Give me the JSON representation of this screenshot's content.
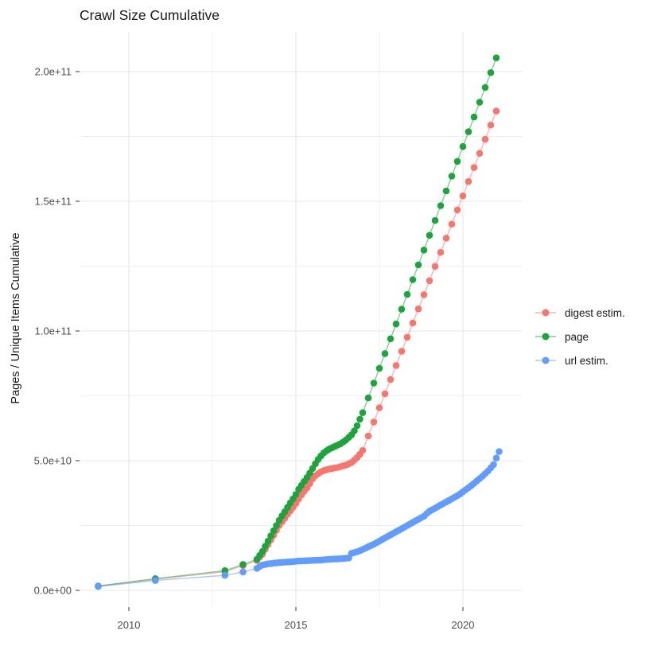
{
  "chart_data": {
    "type": "scatter",
    "title": "Crawl Size Cumulative",
    "xlabel": "",
    "ylabel": "Pages / Unique Items Cumulative",
    "grid": true,
    "legend_position": "right",
    "background": "#ffffff",
    "grid_color_major": "#e7e7e7",
    "grid_color_minor": "#f1f1f1",
    "tick_color": "#333333",
    "tick_label_color": "#4d4d4d",
    "value_unit": "1e9 (values below are in billions)",
    "xlim": [
      2008.5,
      2021.75
    ],
    "ylim_e9": [
      -9,
      216
    ],
    "x_ticks": [
      {
        "v": 2010,
        "label": "2010"
      },
      {
        "v": 2015,
        "label": "2015"
      },
      {
        "v": 2020,
        "label": "2020"
      }
    ],
    "x_minor": [
      2012.5,
      2017.5
    ],
    "y_ticks": [
      {
        "v": 0,
        "label": "0.0e+00"
      },
      {
        "v": 50,
        "label": "5.0e+10"
      },
      {
        "v": 100,
        "label": "1.0e+11"
      },
      {
        "v": 150,
        "label": "1.5e+11"
      },
      {
        "v": 200,
        "label": "2.0e+11"
      }
    ],
    "y_minor": [
      25,
      75,
      125,
      175
    ],
    "series": [
      {
        "name": "digest estim.",
        "color": "#F8766D",
        "points": [
          [
            2009.083,
            1.6
          ],
          [
            2010.792,
            4.3
          ],
          [
            2012.875,
            7.2
          ],
          [
            2013.417,
            9.5
          ],
          [
            2013.833,
            11.5
          ],
          [
            2013.917,
            12.8
          ],
          [
            2014.0,
            14.0
          ],
          [
            2014.083,
            15.8
          ],
          [
            2014.167,
            17.7
          ],
          [
            2014.25,
            19.5
          ],
          [
            2014.333,
            21.3
          ],
          [
            2014.417,
            23.2
          ],
          [
            2014.5,
            25.0
          ],
          [
            2014.583,
            26.4
          ],
          [
            2014.667,
            27.8
          ],
          [
            2014.75,
            29.3
          ],
          [
            2014.833,
            30.7
          ],
          [
            2014.917,
            32.1
          ],
          [
            2015.0,
            33.5
          ],
          [
            2015.083,
            35.2
          ],
          [
            2015.167,
            36.8
          ],
          [
            2015.25,
            38.2
          ],
          [
            2015.333,
            39.5
          ],
          [
            2015.417,
            41.2
          ],
          [
            2015.5,
            43.0
          ],
          [
            2015.583,
            44.2
          ],
          [
            2015.667,
            45.0
          ],
          [
            2015.75,
            45.7
          ],
          [
            2015.833,
            46.2
          ],
          [
            2015.917,
            46.5
          ],
          [
            2016.0,
            46.8
          ],
          [
            2016.083,
            47.0
          ],
          [
            2016.167,
            47.2
          ],
          [
            2016.25,
            47.4
          ],
          [
            2016.333,
            47.7
          ],
          [
            2016.417,
            48.0
          ],
          [
            2016.5,
            48.3
          ],
          [
            2016.583,
            48.8
          ],
          [
            2016.667,
            49.3
          ],
          [
            2016.75,
            50.2
          ],
          [
            2016.833,
            51.2
          ],
          [
            2016.917,
            52.5
          ],
          [
            2017.0,
            54.0
          ],
          [
            2017.167,
            59.5
          ],
          [
            2017.333,
            64.9
          ],
          [
            2017.5,
            70.4
          ],
          [
            2017.667,
            75.8
          ],
          [
            2017.833,
            81.3
          ],
          [
            2018.0,
            86.7
          ],
          [
            2018.167,
            92.2
          ],
          [
            2018.333,
            97.6
          ],
          [
            2018.5,
            103.1
          ],
          [
            2018.667,
            108.5
          ],
          [
            2018.833,
            114.0
          ],
          [
            2019.0,
            119.4
          ],
          [
            2019.167,
            124.9
          ],
          [
            2019.333,
            130.3
          ],
          [
            2019.5,
            135.8
          ],
          [
            2019.667,
            141.2
          ],
          [
            2019.833,
            146.7
          ],
          [
            2020.0,
            152.1
          ],
          [
            2020.167,
            157.6
          ],
          [
            2020.333,
            163.0
          ],
          [
            2020.5,
            168.5
          ],
          [
            2020.667,
            173.9
          ],
          [
            2020.833,
            179.4
          ],
          [
            2021.0,
            184.8
          ]
        ]
      },
      {
        "name": "page",
        "color": "#1CA53C",
        "points": [
          [
            2009.083,
            1.7
          ],
          [
            2010.792,
            4.5
          ],
          [
            2012.875,
            7.6
          ],
          [
            2013.417,
            10.0
          ],
          [
            2013.833,
            12.0
          ],
          [
            2013.917,
            13.5
          ],
          [
            2014.0,
            15.0
          ],
          [
            2014.083,
            17.0
          ],
          [
            2014.167,
            19.0
          ],
          [
            2014.25,
            21.0
          ],
          [
            2014.333,
            23.0
          ],
          [
            2014.417,
            25.0
          ],
          [
            2014.5,
            27.0
          ],
          [
            2014.583,
            28.7
          ],
          [
            2014.667,
            30.3
          ],
          [
            2014.75,
            32.0
          ],
          [
            2014.833,
            33.7
          ],
          [
            2014.917,
            35.3
          ],
          [
            2015.0,
            37.0
          ],
          [
            2015.083,
            39.0
          ],
          [
            2015.167,
            40.5
          ],
          [
            2015.25,
            42.0
          ],
          [
            2015.333,
            43.5
          ],
          [
            2015.417,
            45.2
          ],
          [
            2015.5,
            47.0
          ],
          [
            2015.583,
            48.8
          ],
          [
            2015.667,
            50.5
          ],
          [
            2015.75,
            51.8
          ],
          [
            2015.833,
            53.0
          ],
          [
            2015.917,
            53.8
          ],
          [
            2016.0,
            54.5
          ],
          [
            2016.083,
            55.0
          ],
          [
            2016.167,
            55.5
          ],
          [
            2016.25,
            56.0
          ],
          [
            2016.333,
            56.5
          ],
          [
            2016.417,
            57.2
          ],
          [
            2016.5,
            58.0
          ],
          [
            2016.583,
            59.0
          ],
          [
            2016.667,
            60.0
          ],
          [
            2016.75,
            61.5
          ],
          [
            2016.833,
            63.5
          ],
          [
            2016.917,
            66.0
          ],
          [
            2017.0,
            68.5
          ],
          [
            2017.167,
            74.2
          ],
          [
            2017.333,
            79.9
          ],
          [
            2017.5,
            85.6
          ],
          [
            2017.667,
            91.3
          ],
          [
            2017.833,
            97.0
          ],
          [
            2018.0,
            102.7
          ],
          [
            2018.167,
            108.4
          ],
          [
            2018.333,
            114.1
          ],
          [
            2018.5,
            119.8
          ],
          [
            2018.667,
            125.5
          ],
          [
            2018.833,
            131.2
          ],
          [
            2019.0,
            136.9
          ],
          [
            2019.167,
            142.6
          ],
          [
            2019.333,
            148.3
          ],
          [
            2019.5,
            154.0
          ],
          [
            2019.667,
            159.7
          ],
          [
            2019.833,
            165.4
          ],
          [
            2020.0,
            171.1
          ],
          [
            2020.167,
            176.8
          ],
          [
            2020.333,
            182.5
          ],
          [
            2020.5,
            188.2
          ],
          [
            2020.667,
            193.9
          ],
          [
            2020.833,
            199.6
          ],
          [
            2021.0,
            205.3
          ]
        ]
      },
      {
        "name": "url estim.",
        "color": "#619CFF",
        "points": [
          [
            2009.083,
            1.5
          ],
          [
            2010.792,
            3.8
          ],
          [
            2012.875,
            5.8
          ],
          [
            2013.417,
            7.1
          ],
          [
            2013.833,
            8.5
          ],
          [
            2013.917,
            9.2
          ],
          [
            2014.0,
            9.8
          ],
          [
            2014.083,
            10.0
          ],
          [
            2014.167,
            10.2
          ],
          [
            2014.25,
            10.35
          ],
          [
            2014.333,
            10.5
          ],
          [
            2014.417,
            10.6
          ],
          [
            2014.5,
            10.7
          ],
          [
            2014.583,
            10.8
          ],
          [
            2014.667,
            10.9
          ],
          [
            2014.75,
            10.95
          ],
          [
            2014.833,
            11.0
          ],
          [
            2014.917,
            11.1
          ],
          [
            2015.0,
            11.2
          ],
          [
            2015.083,
            11.3
          ],
          [
            2015.167,
            11.35
          ],
          [
            2015.25,
            11.4
          ],
          [
            2015.333,
            11.45
          ],
          [
            2015.417,
            11.5
          ],
          [
            2015.5,
            11.55
          ],
          [
            2015.583,
            11.6
          ],
          [
            2015.667,
            11.65
          ],
          [
            2015.75,
            11.7
          ],
          [
            2015.833,
            11.8
          ],
          [
            2015.917,
            11.9
          ],
          [
            2016.0,
            12.0
          ],
          [
            2016.083,
            12.05
          ],
          [
            2016.167,
            12.1
          ],
          [
            2016.25,
            12.15
          ],
          [
            2016.333,
            12.2
          ],
          [
            2016.417,
            12.3
          ],
          [
            2016.5,
            12.4
          ],
          [
            2016.583,
            12.5
          ],
          [
            2016.667,
            14.3
          ],
          [
            2016.75,
            14.6
          ],
          [
            2016.833,
            14.9
          ],
          [
            2016.917,
            15.3
          ],
          [
            2017.0,
            15.8
          ],
          [
            2017.083,
            16.3
          ],
          [
            2017.167,
            16.8
          ],
          [
            2017.25,
            17.3
          ],
          [
            2017.333,
            17.8
          ],
          [
            2017.417,
            18.4
          ],
          [
            2017.5,
            19.0
          ],
          [
            2017.583,
            19.6
          ],
          [
            2017.667,
            20.2
          ],
          [
            2017.75,
            20.8
          ],
          [
            2017.833,
            21.4
          ],
          [
            2017.917,
            22.0
          ],
          [
            2018.0,
            22.6
          ],
          [
            2018.083,
            23.2
          ],
          [
            2018.167,
            23.8
          ],
          [
            2018.25,
            24.4
          ],
          [
            2018.333,
            25.0
          ],
          [
            2018.417,
            25.6
          ],
          [
            2018.5,
            26.2
          ],
          [
            2018.583,
            26.8
          ],
          [
            2018.667,
            27.4
          ],
          [
            2018.75,
            28.0
          ],
          [
            2018.833,
            28.6
          ],
          [
            2018.917,
            29.6
          ],
          [
            2019.0,
            30.5
          ],
          [
            2019.083,
            31.1
          ],
          [
            2019.167,
            31.7
          ],
          [
            2019.25,
            32.3
          ],
          [
            2019.333,
            32.9
          ],
          [
            2019.417,
            33.5
          ],
          [
            2019.5,
            34.1
          ],
          [
            2019.583,
            34.7
          ],
          [
            2019.667,
            35.3
          ],
          [
            2019.75,
            35.9
          ],
          [
            2019.833,
            36.5
          ],
          [
            2019.917,
            37.2
          ],
          [
            2020.0,
            38.0
          ],
          [
            2020.083,
            38.8
          ],
          [
            2020.167,
            39.6
          ],
          [
            2020.25,
            40.4
          ],
          [
            2020.333,
            41.3
          ],
          [
            2020.417,
            42.2
          ],
          [
            2020.5,
            43.1
          ],
          [
            2020.583,
            44.0
          ],
          [
            2020.667,
            45.0
          ],
          [
            2020.75,
            46.0
          ],
          [
            2020.833,
            47.2
          ],
          [
            2020.917,
            48.5
          ],
          [
            2021.0,
            51.0
          ],
          [
            2021.083,
            53.5
          ]
        ]
      }
    ]
  }
}
